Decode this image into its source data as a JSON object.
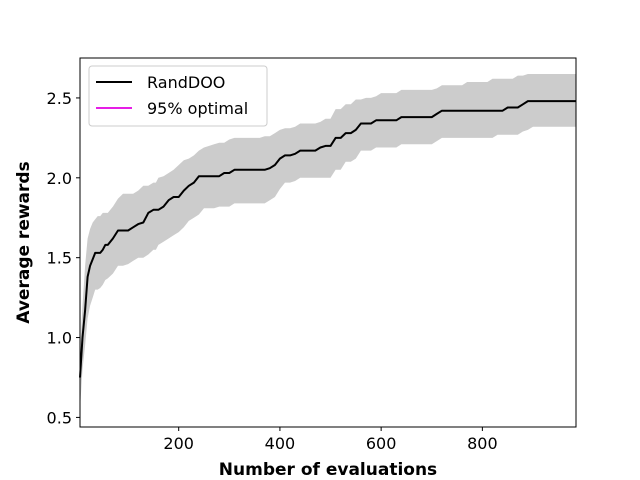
{
  "chart_data": {
    "type": "line",
    "title": "",
    "xlabel": "Number of evaluations",
    "ylabel": "Average rewards",
    "xlim": [
      5,
      985
    ],
    "ylim": [
      0.44,
      2.75
    ],
    "xticks": [
      200,
      400,
      600,
      800
    ],
    "yticks": [
      0.5,
      1.0,
      1.5,
      2.0,
      2.5
    ],
    "xtick_labels": [
      "200",
      "400",
      "600",
      "800"
    ],
    "ytick_labels": [
      "0.5",
      "1.0",
      "1.5",
      "2.0",
      "2.5"
    ],
    "grid": false,
    "legend_position": "top-left",
    "series": [
      {
        "name": "RandDOO",
        "color": "#000000",
        "band_color": "#cccccc",
        "x": [
          5,
          10,
          15,
          20,
          25,
          30,
          35,
          40,
          45,
          50,
          55,
          60,
          70,
          80,
          90,
          100,
          110,
          120,
          130,
          140,
          150,
          155,
          160,
          170,
          180,
          190,
          200,
          210,
          220,
          230,
          240,
          250,
          260,
          270,
          280,
          290,
          300,
          310,
          320,
          330,
          340,
          350,
          360,
          370,
          380,
          390,
          400,
          410,
          420,
          430,
          440,
          450,
          460,
          470,
          480,
          490,
          500,
          510,
          520,
          530,
          540,
          550,
          560,
          570,
          580,
          590,
          600,
          610,
          620,
          630,
          640,
          650,
          660,
          670,
          680,
          690,
          700,
          710,
          720,
          730,
          740,
          750,
          760,
          770,
          780,
          790,
          800,
          810,
          820,
          830,
          840,
          850,
          860,
          870,
          880,
          890,
          900,
          920,
          940,
          960,
          985
        ],
        "mean": [
          0.75,
          1.0,
          1.17,
          1.38,
          1.45,
          1.49,
          1.53,
          1.53,
          1.53,
          1.55,
          1.58,
          1.58,
          1.62,
          1.67,
          1.67,
          1.67,
          1.69,
          1.71,
          1.72,
          1.78,
          1.8,
          1.8,
          1.8,
          1.82,
          1.86,
          1.88,
          1.88,
          1.92,
          1.95,
          1.97,
          2.01,
          2.01,
          2.01,
          2.01,
          2.01,
          2.03,
          2.03,
          2.05,
          2.05,
          2.05,
          2.05,
          2.05,
          2.05,
          2.05,
          2.06,
          2.08,
          2.12,
          2.14,
          2.14,
          2.15,
          2.17,
          2.17,
          2.17,
          2.17,
          2.19,
          2.2,
          2.2,
          2.25,
          2.25,
          2.28,
          2.28,
          2.3,
          2.34,
          2.34,
          2.34,
          2.36,
          2.36,
          2.36,
          2.36,
          2.36,
          2.38,
          2.38,
          2.38,
          2.38,
          2.38,
          2.38,
          2.38,
          2.4,
          2.42,
          2.42,
          2.42,
          2.42,
          2.42,
          2.42,
          2.42,
          2.42,
          2.42,
          2.42,
          2.42,
          2.42,
          2.42,
          2.44,
          2.44,
          2.44,
          2.46,
          2.48,
          2.48,
          2.48,
          2.48,
          2.48,
          2.48
        ],
        "upper": [
          0.9,
          1.2,
          1.45,
          1.62,
          1.68,
          1.72,
          1.74,
          1.76,
          1.76,
          1.78,
          1.78,
          1.78,
          1.82,
          1.87,
          1.9,
          1.9,
          1.9,
          1.92,
          1.95,
          1.95,
          1.97,
          1.97,
          2.0,
          2.01,
          2.03,
          2.05,
          2.08,
          2.11,
          2.12,
          2.14,
          2.17,
          2.19,
          2.2,
          2.21,
          2.22,
          2.22,
          2.24,
          2.25,
          2.25,
          2.25,
          2.25,
          2.25,
          2.25,
          2.26,
          2.26,
          2.28,
          2.3,
          2.31,
          2.31,
          2.32,
          2.34,
          2.34,
          2.34,
          2.34,
          2.35,
          2.37,
          2.37,
          2.43,
          2.43,
          2.46,
          2.46,
          2.49,
          2.49,
          2.5,
          2.5,
          2.51,
          2.53,
          2.53,
          2.53,
          2.53,
          2.55,
          2.55,
          2.55,
          2.55,
          2.55,
          2.55,
          2.55,
          2.56,
          2.58,
          2.58,
          2.58,
          2.58,
          2.58,
          2.6,
          2.6,
          2.6,
          2.6,
          2.6,
          2.62,
          2.62,
          2.62,
          2.62,
          2.62,
          2.64,
          2.64,
          2.65,
          2.65,
          2.65,
          2.65,
          2.65,
          2.65
        ],
        "lower": [
          0.55,
          0.8,
          0.95,
          1.12,
          1.2,
          1.25,
          1.3,
          1.3,
          1.31,
          1.33,
          1.36,
          1.37,
          1.4,
          1.45,
          1.45,
          1.46,
          1.48,
          1.5,
          1.5,
          1.52,
          1.55,
          1.55,
          1.58,
          1.6,
          1.62,
          1.64,
          1.66,
          1.69,
          1.73,
          1.75,
          1.77,
          1.81,
          1.81,
          1.81,
          1.82,
          1.82,
          1.82,
          1.84,
          1.84,
          1.84,
          1.84,
          1.84,
          1.84,
          1.84,
          1.86,
          1.88,
          1.93,
          1.97,
          1.97,
          1.98,
          2.0,
          2.0,
          2.0,
          2.0,
          2.0,
          2.0,
          2.0,
          2.05,
          2.05,
          2.1,
          2.1,
          2.12,
          2.17,
          2.17,
          2.17,
          2.19,
          2.19,
          2.19,
          2.19,
          2.19,
          2.21,
          2.21,
          2.21,
          2.21,
          2.21,
          2.21,
          2.21,
          2.23,
          2.25,
          2.25,
          2.25,
          2.25,
          2.25,
          2.25,
          2.25,
          2.25,
          2.25,
          2.25,
          2.25,
          2.27,
          2.27,
          2.27,
          2.27,
          2.27,
          2.29,
          2.3,
          2.32,
          2.32,
          2.32,
          2.32,
          2.32
        ]
      },
      {
        "name": "95% optimal",
        "color": "#e61ee6",
        "x": [],
        "mean": []
      }
    ]
  }
}
